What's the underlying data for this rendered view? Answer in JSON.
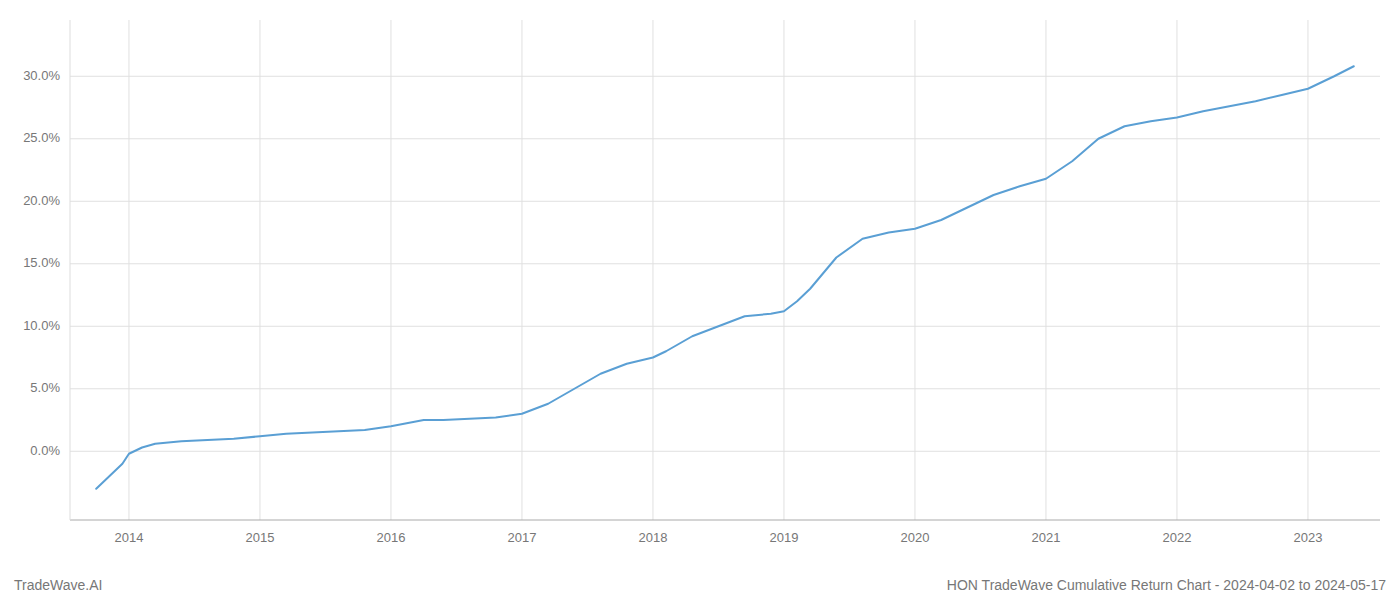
{
  "chart_data": {
    "type": "line",
    "title": "HON TradeWave Cumulative Return Chart - 2024-04-02 to 2024-05-17",
    "annotations": [
      "TradeWave.AI"
    ],
    "color": "#5a9fd4",
    "grid": true,
    "x": [
      2013.75,
      2013.85,
      2013.95,
      2014.0,
      2014.1,
      2014.2,
      2014.4,
      2014.6,
      2014.8,
      2015.0,
      2015.2,
      2015.4,
      2015.6,
      2015.8,
      2016.0,
      2016.1,
      2016.25,
      2016.4,
      2016.6,
      2016.8,
      2017.0,
      2017.2,
      2017.4,
      2017.6,
      2017.8,
      2018.0,
      2018.1,
      2018.2,
      2018.3,
      2018.5,
      2018.7,
      2018.9,
      2019.0,
      2019.1,
      2019.2,
      2019.4,
      2019.6,
      2019.8,
      2020.0,
      2020.2,
      2020.4,
      2020.6,
      2020.8,
      2021.0,
      2021.2,
      2021.4,
      2021.6,
      2021.8,
      2022.0,
      2022.2,
      2022.4,
      2022.6,
      2022.8,
      2023.0,
      2023.2,
      2023.35
    ],
    "values": [
      -0.03,
      -0.02,
      -0.01,
      -0.002,
      0.003,
      0.006,
      0.008,
      0.009,
      0.01,
      0.012,
      0.014,
      0.015,
      0.016,
      0.017,
      0.02,
      0.022,
      0.025,
      0.025,
      0.026,
      0.027,
      0.03,
      0.038,
      0.05,
      0.062,
      0.07,
      0.075,
      0.08,
      0.086,
      0.092,
      0.1,
      0.108,
      0.11,
      0.112,
      0.12,
      0.13,
      0.155,
      0.17,
      0.175,
      0.178,
      0.185,
      0.195,
      0.205,
      0.212,
      0.218,
      0.232,
      0.25,
      0.26,
      0.264,
      0.267,
      0.272,
      0.276,
      0.28,
      0.285,
      0.29,
      0.3,
      0.308
    ],
    "xlim": [
      2013.55,
      2023.55
    ],
    "xticks": [
      2014,
      2015,
      2016,
      2017,
      2018,
      2019,
      2020,
      2021,
      2022,
      2023
    ],
    "ylim": [
      -0.055,
      0.345
    ],
    "yticks": [
      {
        "value": 0.0,
        "label": "0.0%"
      },
      {
        "value": 0.05,
        "label": "5.0%"
      },
      {
        "value": 0.1,
        "label": "10.0%"
      },
      {
        "value": 0.15,
        "label": "15.0%"
      },
      {
        "value": 0.2,
        "label": "20.0%"
      },
      {
        "value": 0.25,
        "label": "25.0%"
      },
      {
        "value": 0.3,
        "label": "30.0%"
      }
    ]
  }
}
